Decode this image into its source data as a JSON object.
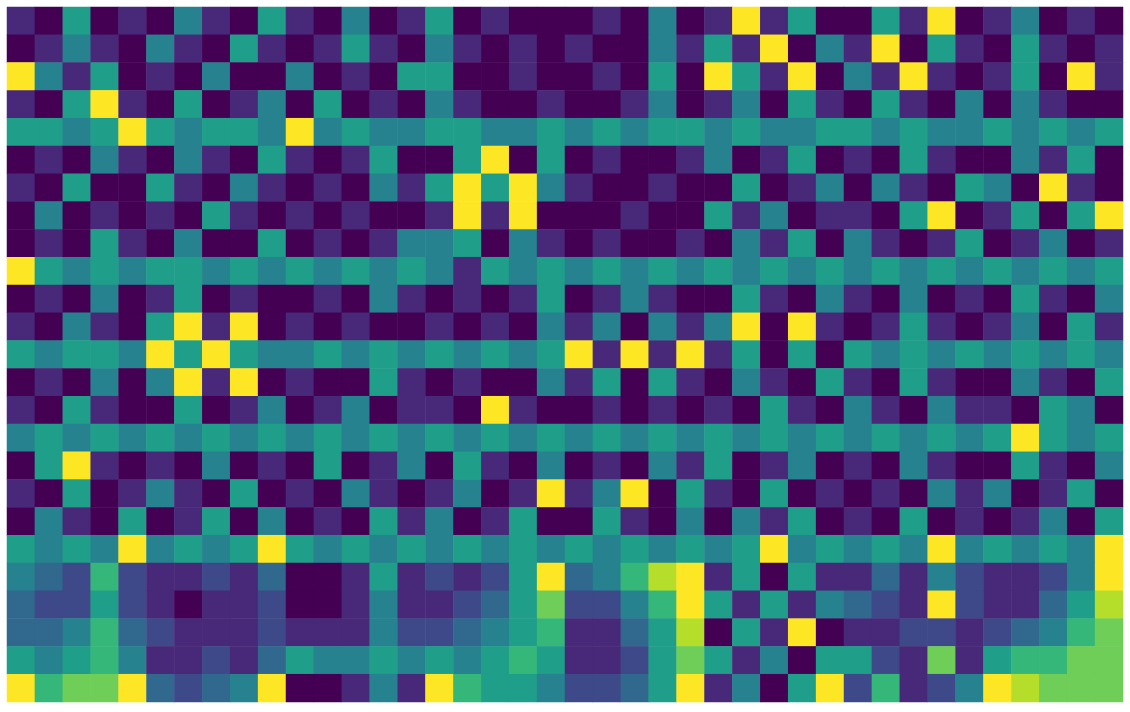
{
  "chart_data": {
    "type": "heatmap",
    "tick_labels": false,
    "color_range": [
      0,
      9
    ],
    "cells": [
      [
        1,
        0,
        5,
        0,
        1,
        0,
        4,
        1,
        0,
        5,
        1,
        0,
        4,
        0,
        1,
        5,
        0,
        1,
        0,
        0,
        0,
        1,
        0,
        4,
        0,
        1,
        9,
        1,
        5,
        0,
        0,
        5,
        1,
        9,
        0,
        1,
        4,
        0,
        1,
        0
      ],
      [
        0,
        1,
        4,
        1,
        0,
        4,
        1,
        0,
        5,
        1,
        0,
        1,
        5,
        1,
        0,
        4,
        1,
        0,
        1,
        0,
        1,
        0,
        0,
        4,
        1,
        5,
        1,
        9,
        0,
        4,
        1,
        9,
        0,
        5,
        1,
        0,
        5,
        1,
        0,
        1
      ],
      [
        9,
        4,
        1,
        5,
        0,
        1,
        0,
        4,
        0,
        0,
        4,
        0,
        1,
        0,
        5,
        5,
        0,
        0,
        1,
        0,
        0,
        1,
        0,
        5,
        0,
        9,
        5,
        1,
        9,
        0,
        4,
        1,
        9,
        1,
        0,
        1,
        5,
        0,
        9,
        1
      ],
      [
        1,
        0,
        5,
        9,
        1,
        0,
        5,
        0,
        1,
        4,
        0,
        5,
        0,
        1,
        0,
        4,
        1,
        0,
        0,
        1,
        0,
        0,
        1,
        4,
        0,
        1,
        4,
        0,
        5,
        1,
        0,
        5,
        1,
        0,
        4,
        0,
        4,
        1,
        0,
        0
      ],
      [
        5,
        5,
        4,
        5,
        9,
        5,
        4,
        5,
        5,
        4,
        9,
        4,
        5,
        4,
        4,
        5,
        5,
        4,
        4,
        5,
        4,
        5,
        4,
        5,
        5,
        4,
        5,
        4,
        4,
        5,
        5,
        4,
        5,
        4,
        4,
        5,
        4,
        5,
        4,
        5
      ],
      [
        0,
        1,
        0,
        4,
        1,
        0,
        4,
        1,
        0,
        5,
        1,
        0,
        1,
        5,
        0,
        0,
        5,
        9,
        0,
        5,
        0,
        1,
        0,
        0,
        1,
        4,
        0,
        1,
        5,
        0,
        1,
        0,
        5,
        1,
        0,
        0,
        4,
        1,
        5,
        0
      ],
      [
        1,
        0,
        5,
        0,
        0,
        5,
        1,
        0,
        4,
        1,
        0,
        1,
        0,
        4,
        1,
        5,
        9,
        5,
        9,
        4,
        1,
        0,
        0,
        1,
        0,
        0,
        5,
        0,
        1,
        4,
        0,
        4,
        1,
        0,
        5,
        4,
        0,
        9,
        1,
        0
      ],
      [
        0,
        4,
        0,
        1,
        0,
        1,
        0,
        5,
        1,
        0,
        1,
        0,
        1,
        0,
        0,
        1,
        9,
        1,
        9,
        0,
        0,
        0,
        1,
        0,
        0,
        5,
        1,
        4,
        0,
        1,
        1,
        0,
        5,
        9,
        0,
        1,
        5,
        0,
        5,
        9
      ],
      [
        0,
        1,
        0,
        5,
        1,
        0,
        4,
        0,
        0,
        5,
        0,
        1,
        0,
        1,
        4,
        4,
        5,
        0,
        4,
        1,
        0,
        1,
        0,
        0,
        1,
        0,
        4,
        1,
        5,
        0,
        4,
        1,
        0,
        1,
        5,
        0,
        1,
        4,
        0,
        1
      ],
      [
        9,
        5,
        4,
        5,
        4,
        5,
        5,
        4,
        5,
        4,
        5,
        4,
        5,
        4,
        5,
        4,
        1,
        5,
        4,
        5,
        4,
        5,
        4,
        5,
        4,
        5,
        4,
        5,
        4,
        5,
        4,
        5,
        4,
        5,
        4,
        5,
        4,
        5,
        4,
        5
      ],
      [
        0,
        1,
        0,
        4,
        0,
        1,
        5,
        0,
        1,
        0,
        0,
        1,
        0,
        4,
        1,
        0,
        1,
        0,
        1,
        5,
        0,
        1,
        4,
        1,
        0,
        0,
        5,
        1,
        0,
        4,
        1,
        0,
        4,
        0,
        1,
        0,
        5,
        1,
        0,
        4
      ],
      [
        1,
        0,
        4,
        1,
        0,
        5,
        9,
        1,
        9,
        0,
        1,
        0,
        1,
        0,
        0,
        1,
        0,
        1,
        0,
        4,
        1,
        4,
        0,
        4,
        1,
        4,
        9,
        0,
        9,
        1,
        0,
        1,
        5,
        1,
        0,
        1,
        4,
        0,
        5,
        1
      ],
      [
        5,
        4,
        5,
        5,
        4,
        9,
        5,
        9,
        5,
        4,
        4,
        5,
        4,
        5,
        4,
        5,
        4,
        5,
        4,
        5,
        9,
        1,
        9,
        1,
        9,
        1,
        5,
        0,
        5,
        0,
        5,
        4,
        5,
        4,
        5,
        4,
        5,
        4,
        5,
        4
      ],
      [
        0,
        1,
        0,
        4,
        0,
        4,
        9,
        1,
        9,
        0,
        1,
        0,
        0,
        5,
        1,
        0,
        1,
        0,
        0,
        4,
        1,
        5,
        0,
        5,
        1,
        0,
        4,
        1,
        0,
        5,
        1,
        0,
        5,
        1,
        0,
        0,
        4,
        1,
        0,
        5
      ],
      [
        1,
        0,
        5,
        1,
        0,
        0,
        5,
        0,
        1,
        4,
        0,
        1,
        4,
        0,
        1,
        1,
        0,
        9,
        1,
        0,
        0,
        1,
        0,
        1,
        0,
        1,
        0,
        5,
        1,
        0,
        4,
        1,
        0,
        4,
        1,
        1,
        0,
        5,
        4,
        0
      ],
      [
        4,
        5,
        4,
        5,
        4,
        5,
        4,
        5,
        4,
        5,
        4,
        5,
        4,
        5,
        4,
        5,
        4,
        5,
        4,
        5,
        4,
        5,
        4,
        5,
        4,
        5,
        4,
        5,
        4,
        5,
        4,
        5,
        4,
        5,
        4,
        5,
        9,
        5,
        4,
        5
      ],
      [
        0,
        5,
        9,
        1,
        0,
        1,
        0,
        4,
        0,
        1,
        0,
        5,
        0,
        1,
        4,
        0,
        5,
        1,
        0,
        4,
        0,
        1,
        0,
        4,
        1,
        5,
        0,
        1,
        4,
        0,
        1,
        0,
        4,
        1,
        0,
        0,
        5,
        1,
        0,
        4
      ],
      [
        1,
        0,
        5,
        0,
        1,
        4,
        1,
        0,
        5,
        0,
        1,
        0,
        4,
        1,
        0,
        1,
        4,
        0,
        1,
        9,
        1,
        4,
        9,
        0,
        5,
        1,
        0,
        5,
        0,
        1,
        0,
        1,
        0,
        4,
        1,
        4,
        0,
        1,
        5,
        0
      ],
      [
        0,
        4,
        1,
        0,
        5,
        0,
        1,
        5,
        0,
        4,
        0,
        1,
        0,
        5,
        1,
        4,
        0,
        1,
        5,
        0,
        0,
        5,
        1,
        0,
        4,
        0,
        4,
        1,
        5,
        0,
        1,
        0,
        5,
        0,
        1,
        0,
        1,
        4,
        0,
        5
      ],
      [
        5,
        4,
        5,
        4,
        9,
        4,
        5,
        4,
        5,
        9,
        5,
        4,
        5,
        4,
        5,
        4,
        5,
        4,
        5,
        4,
        5,
        4,
        5,
        4,
        5,
        4,
        5,
        9,
        4,
        5,
        4,
        5,
        4,
        9,
        4,
        5,
        4,
        5,
        4,
        9
      ],
      [
        4,
        3,
        2,
        6,
        2,
        1,
        1,
        2,
        1,
        3,
        0,
        0,
        1,
        5,
        1,
        2,
        1,
        2,
        5,
        9,
        3,
        4,
        6,
        8,
        9,
        1,
        5,
        0,
        5,
        1,
        1,
        3,
        1,
        4,
        2,
        1,
        1,
        2,
        4,
        9
      ],
      [
        3,
        2,
        2,
        5,
        2,
        1,
        0,
        1,
        1,
        2,
        0,
        0,
        1,
        4,
        1,
        1,
        2,
        3,
        5,
        7,
        2,
        2,
        4,
        6,
        9,
        5,
        1,
        5,
        1,
        4,
        3,
        2,
        1,
        9,
        2,
        1,
        1,
        3,
        5,
        8
      ],
      [
        3,
        3,
        4,
        6,
        3,
        2,
        1,
        1,
        1,
        2,
        1,
        1,
        1,
        4,
        2,
        2,
        3,
        4,
        5,
        6,
        1,
        1,
        3,
        5,
        8,
        0,
        5,
        1,
        9,
        0,
        1,
        1,
        2,
        2,
        1,
        2,
        3,
        4,
        6,
        7
      ],
      [
        5,
        4,
        5,
        6,
        4,
        1,
        1,
        2,
        1,
        3,
        5,
        4,
        4,
        5,
        4,
        5,
        4,
        5,
        6,
        5,
        1,
        1,
        2,
        5,
        7,
        5,
        1,
        4,
        0,
        5,
        5,
        2,
        1,
        7,
        1,
        5,
        6,
        6,
        7,
        7
      ],
      [
        9,
        6,
        7,
        7,
        9,
        3,
        2,
        3,
        4,
        9,
        0,
        0,
        1,
        4,
        1,
        9,
        6,
        5,
        5,
        4,
        2,
        2,
        3,
        5,
        9,
        1,
        4,
        0,
        5,
        9,
        2,
        6,
        1,
        2,
        4,
        9,
        8,
        7,
        7,
        7
      ]
    ]
  }
}
